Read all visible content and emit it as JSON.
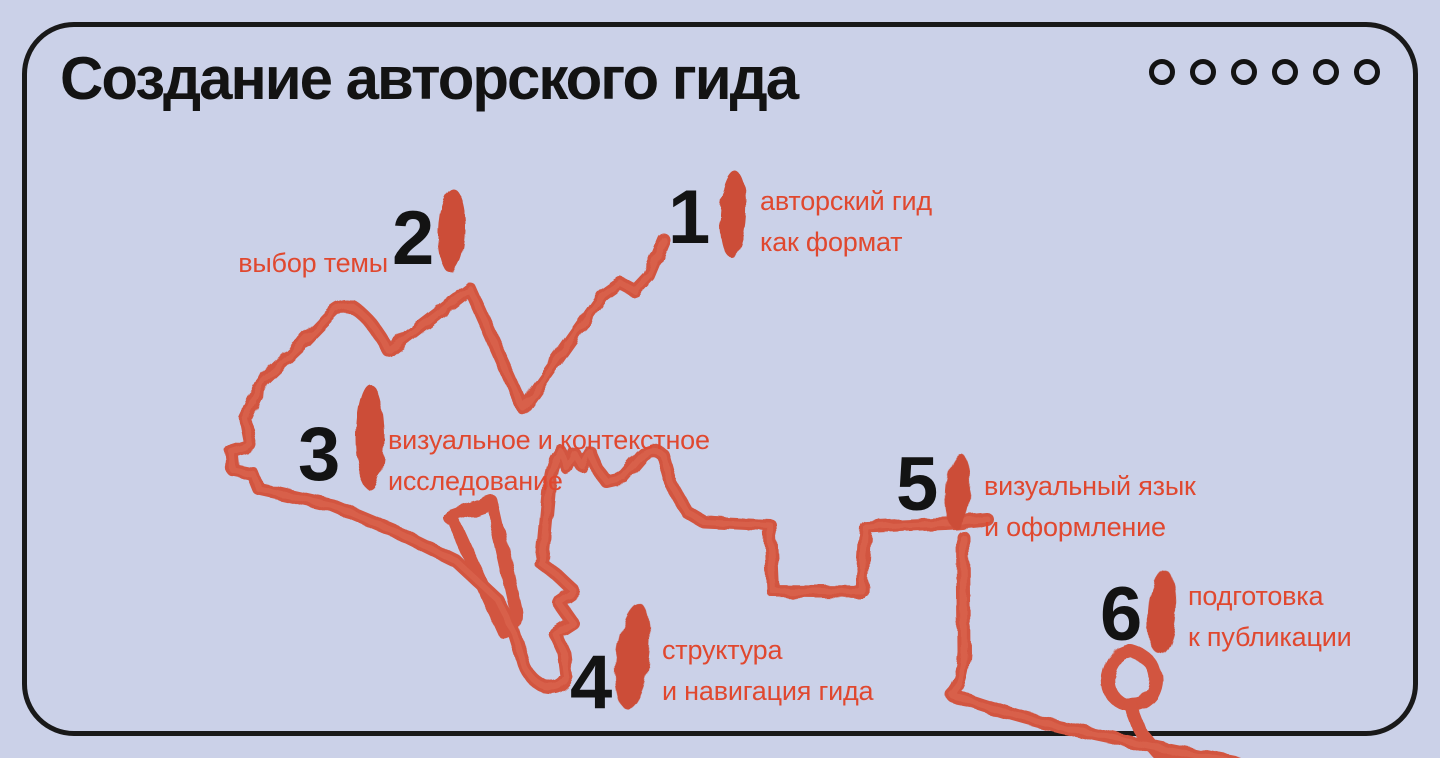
{
  "title": "Создание авторского гида",
  "progress_dots": {
    "count": 6
  },
  "colors": {
    "background": "#cbd1e8",
    "card_border": "#191919",
    "title_text": "#131313",
    "step_number": "#131313",
    "label_text": "#e0482f",
    "route_stroke": "#d2553f",
    "marker_blob": "#cc4e39"
  },
  "steps": [
    {
      "number": "1",
      "label_lines": [
        "авторский гид",
        "как формат"
      ]
    },
    {
      "number": "2",
      "label_lines": [
        "выбор темы"
      ]
    },
    {
      "number": "3",
      "label_lines": [
        "визуальное и контекстное",
        "исследование"
      ]
    },
    {
      "number": "4",
      "label_lines": [
        "структура",
        "и навигация гида"
      ]
    },
    {
      "number": "5",
      "label_lines": [
        "визуальный язык",
        "и оформление"
      ]
    },
    {
      "number": "6",
      "label_lines": [
        "подготовка",
        "к публикации"
      ]
    }
  ]
}
